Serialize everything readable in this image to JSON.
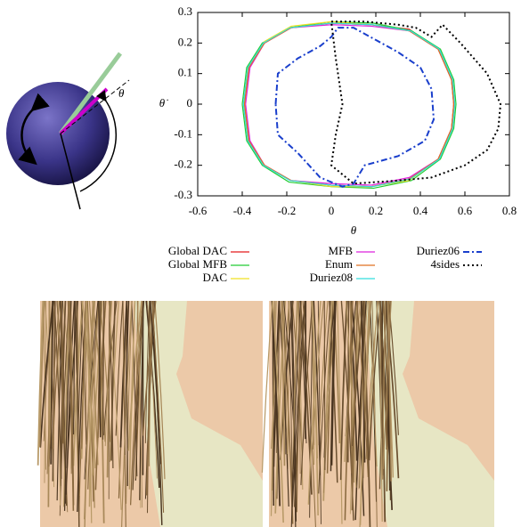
{
  "chart_data": {
    "type": "line",
    "x_label": "θ",
    "y_label": "θ̇",
    "annotations": [
      "θ"
    ],
    "xlim": [
      -0.6,
      0.8
    ],
    "xticks": [
      -0.6,
      -0.4,
      -0.2,
      0,
      0.2,
      0.4,
      0.6,
      0.8
    ],
    "ylim": [
      -0.3,
      0.3
    ],
    "yticks": [
      -0.3,
      -0.2,
      -0.1,
      0,
      0.1,
      0.2,
      0.3
    ],
    "grid": false,
    "series": [
      {
        "name": "Global DAC",
        "color": "#e41a1c",
        "dash": "solid",
        "x": [
          -0.39,
          -0.37,
          -0.3,
          -0.18,
          0,
          0.18,
          0.35,
          0.48,
          0.54,
          0.55,
          0.54,
          0.48,
          0.35,
          0.18,
          0,
          -0.18,
          -0.3,
          -0.37,
          -0.39
        ],
        "values": [
          0,
          0.12,
          0.2,
          0.25,
          0.265,
          0.26,
          0.245,
          0.18,
          0.08,
          0,
          -0.08,
          -0.18,
          -0.245,
          -0.27,
          -0.265,
          -0.25,
          -0.2,
          -0.12,
          0
        ]
      },
      {
        "name": "Global MFB",
        "color": "#22cc33",
        "dash": "solid",
        "x": [
          -0.4,
          -0.38,
          -0.31,
          -0.19,
          0,
          0.19,
          0.36,
          0.49,
          0.55,
          0.56,
          0.55,
          0.49,
          0.36,
          0.19,
          0,
          -0.19,
          -0.31,
          -0.38,
          -0.4
        ],
        "values": [
          0,
          0.12,
          0.2,
          0.25,
          0.27,
          0.265,
          0.24,
          0.18,
          0.08,
          0,
          -0.08,
          -0.18,
          -0.25,
          -0.275,
          -0.27,
          -0.255,
          -0.2,
          -0.12,
          0
        ]
      },
      {
        "name": "DAC",
        "color": "#f0e020",
        "dash": "solid",
        "x": [
          -0.39,
          -0.37,
          -0.3,
          -0.18,
          0,
          0.18,
          0.35,
          0.48,
          0.54,
          0.55,
          0.54,
          0.48,
          0.35,
          0.18,
          0,
          -0.18,
          -0.3,
          -0.37,
          -0.39
        ],
        "values": [
          0,
          0.125,
          0.205,
          0.255,
          0.27,
          0.26,
          0.24,
          0.18,
          0.08,
          0,
          -0.08,
          -0.18,
          -0.25,
          -0.27,
          -0.27,
          -0.25,
          -0.2,
          -0.12,
          0
        ]
      },
      {
        "name": "MFB",
        "color": "#dd22dd",
        "dash": "solid",
        "x": [
          -0.385,
          -0.365,
          -0.3,
          -0.18,
          0,
          0.18,
          0.35,
          0.48,
          0.54,
          0.55,
          0.54,
          0.48,
          0.35,
          0.18,
          0,
          -0.18,
          -0.3,
          -0.365,
          -0.385
        ],
        "values": [
          0,
          0.12,
          0.2,
          0.25,
          0.26,
          0.255,
          0.24,
          0.18,
          0.08,
          0,
          -0.08,
          -0.18,
          -0.24,
          -0.265,
          -0.26,
          -0.25,
          -0.2,
          -0.12,
          0
        ]
      },
      {
        "name": "Enum",
        "color": "#e07020",
        "dash": "solid",
        "x": [
          -0.39,
          -0.37,
          -0.3,
          -0.18,
          0,
          0.18,
          0.35,
          0.48,
          0.54,
          0.55,
          0.54,
          0.48,
          0.35,
          0.18,
          0,
          -0.18,
          -0.3,
          -0.37,
          -0.39
        ],
        "values": [
          0,
          0.12,
          0.2,
          0.25,
          0.265,
          0.26,
          0.24,
          0.18,
          0.08,
          0,
          -0.08,
          -0.18,
          -0.245,
          -0.27,
          -0.265,
          -0.25,
          -0.2,
          -0.12,
          0
        ]
      },
      {
        "name": "Duriez08",
        "color": "#33dddd",
        "dash": "solid",
        "x": [
          -0.395,
          -0.375,
          -0.305,
          -0.185,
          0,
          0.185,
          0.355,
          0.485,
          0.545,
          0.555,
          0.545,
          0.485,
          0.355,
          0.185,
          0,
          -0.185,
          -0.305,
          -0.375,
          -0.395
        ],
        "values": [
          0,
          0.12,
          0.2,
          0.25,
          0.265,
          0.26,
          0.24,
          0.18,
          0.08,
          0,
          -0.08,
          -0.18,
          -0.245,
          -0.27,
          -0.265,
          -0.25,
          -0.2,
          -0.12,
          0
        ]
      },
      {
        "name": "Duriez06",
        "color": "#1a3fcc",
        "dash": "dashdot",
        "x": [
          -0.25,
          -0.24,
          -0.15,
          -0.05,
          0,
          0.03,
          0.1,
          0.2,
          0.3,
          0.4,
          0.45,
          0.46,
          0.42,
          0.3,
          0.15,
          0.1,
          0.05,
          -0.05,
          -0.15,
          -0.24,
          -0.25
        ],
        "values": [
          0,
          0.1,
          0.15,
          0.19,
          0.22,
          0.25,
          0.25,
          0.21,
          0.17,
          0.12,
          0.05,
          -0.05,
          -0.12,
          -0.17,
          -0.2,
          -0.26,
          -0.27,
          -0.24,
          -0.16,
          -0.1,
          0
        ]
      },
      {
        "name": "4sides",
        "color": "#000000",
        "dash": "dotted",
        "x": [
          0,
          0.15,
          0.3,
          0.38,
          0.45,
          0.5,
          0.58,
          0.7,
          0.76,
          0.75,
          0.7,
          0.6,
          0.45,
          0.3,
          0.1,
          0,
          0.02,
          0.05,
          0.02,
          0
        ],
        "values": [
          0.27,
          0.27,
          0.26,
          0.25,
          0.22,
          0.26,
          0.2,
          0.1,
          0,
          -0.08,
          -0.15,
          -0.2,
          -0.24,
          -0.25,
          -0.26,
          -0.2,
          -0.1,
          0,
          0.15,
          0.27
        ]
      }
    ]
  }
}
